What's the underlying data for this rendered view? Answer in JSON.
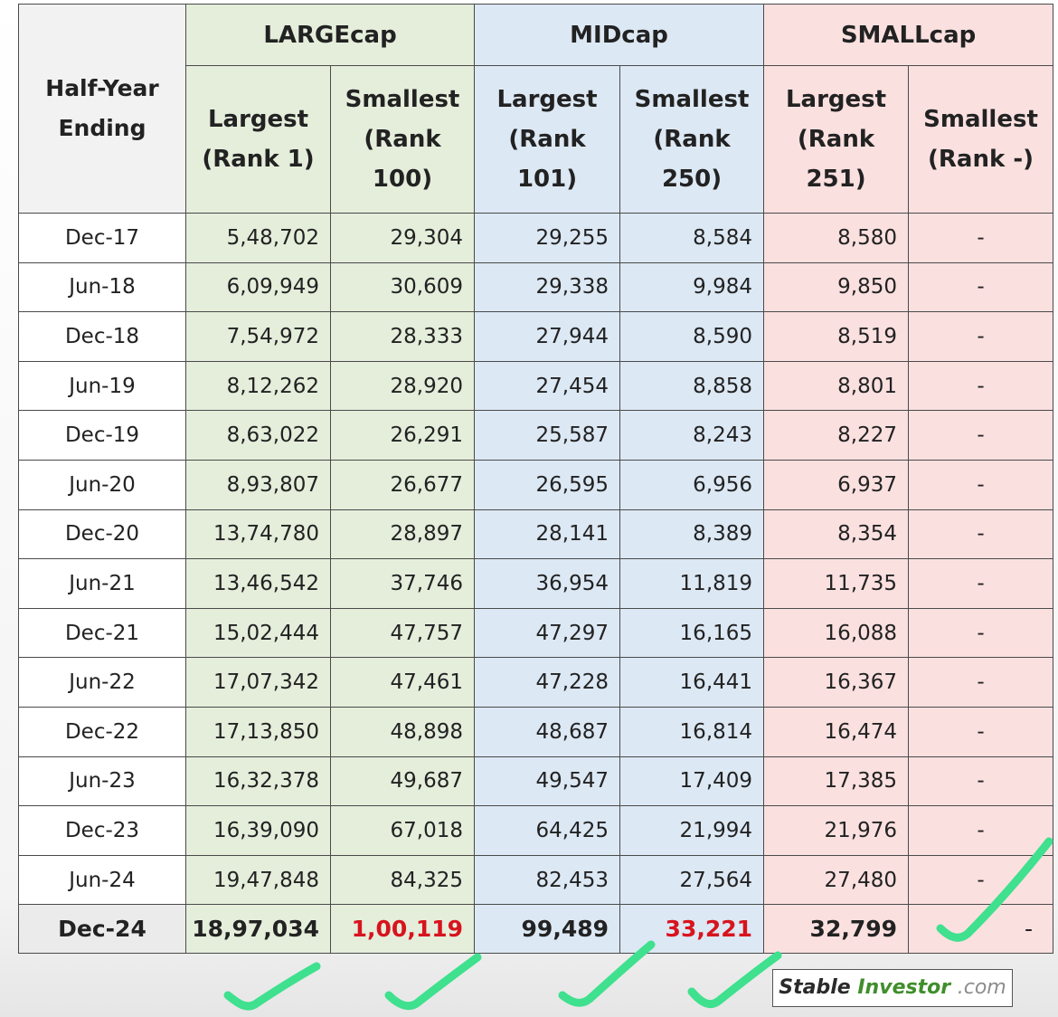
{
  "table": {
    "header_label": [
      "Half-Year",
      "Ending"
    ],
    "groups": [
      "LARGEcap",
      "MIDcap",
      "SMALLcap"
    ],
    "sub_headers": [
      [
        "Largest",
        "(Rank 1)"
      ],
      [
        "Smallest",
        "(Rank 100)"
      ],
      [
        "Largest",
        "(Rank 101)"
      ],
      [
        "Smallest",
        "(Rank 250)"
      ],
      [
        "Largest",
        "(Rank 251)"
      ],
      [
        "Smallest",
        "(Rank -)"
      ]
    ],
    "rows": [
      [
        "Dec-17",
        "5,48,702",
        "29,304",
        "29,255",
        "8,584",
        "8,580",
        "-"
      ],
      [
        "Jun-18",
        "6,09,949",
        "30,609",
        "29,338",
        "9,984",
        "9,850",
        "-"
      ],
      [
        "Dec-18",
        "7,54,972",
        "28,333",
        "27,944",
        "8,590",
        "8,519",
        "-"
      ],
      [
        "Jun-19",
        "8,12,262",
        "28,920",
        "27,454",
        "8,858",
        "8,801",
        "-"
      ],
      [
        "Dec-19",
        "8,63,022",
        "26,291",
        "25,587",
        "8,243",
        "8,227",
        "-"
      ],
      [
        "Jun-20",
        "8,93,807",
        "26,677",
        "26,595",
        "6,956",
        "6,937",
        "-"
      ],
      [
        "Dec-20",
        "13,74,780",
        "28,897",
        "28,141",
        "8,389",
        "8,354",
        "-"
      ],
      [
        "Jun-21",
        "13,46,542",
        "37,746",
        "36,954",
        "11,819",
        "11,735",
        "-"
      ],
      [
        "Dec-21",
        "15,02,444",
        "47,757",
        "47,297",
        "16,165",
        "16,088",
        "-"
      ],
      [
        "Jun-22",
        "17,07,342",
        "47,461",
        "47,228",
        "16,441",
        "16,367",
        "-"
      ],
      [
        "Dec-22",
        "17,13,850",
        "48,898",
        "48,687",
        "16,814",
        "16,474",
        "-"
      ],
      [
        "Jun-23",
        "16,32,378",
        "49,687",
        "49,547",
        "17,409",
        "17,385",
        "-"
      ],
      [
        "Dec-23",
        "16,39,090",
        "67,018",
        "64,425",
        "21,994",
        "21,976",
        "-"
      ],
      [
        "Jun-24",
        "19,47,848",
        "84,325",
        "82,453",
        "27,564",
        "27,480",
        "-"
      ]
    ],
    "last_row": [
      "Dec-24",
      "18,97,034",
      "1,00,119",
      "99,489",
      "33,221",
      "32,799",
      "-"
    ]
  },
  "colors": {
    "largecap": "#e4eedb",
    "midcap": "#dce8f4",
    "smallcap": "#fbe0e0",
    "highlight_red": "#d7141e",
    "check_marks": "#3fe08e"
  },
  "brand": {
    "part1": "Stable",
    "part2": "Investor",
    "part3": ".com"
  }
}
